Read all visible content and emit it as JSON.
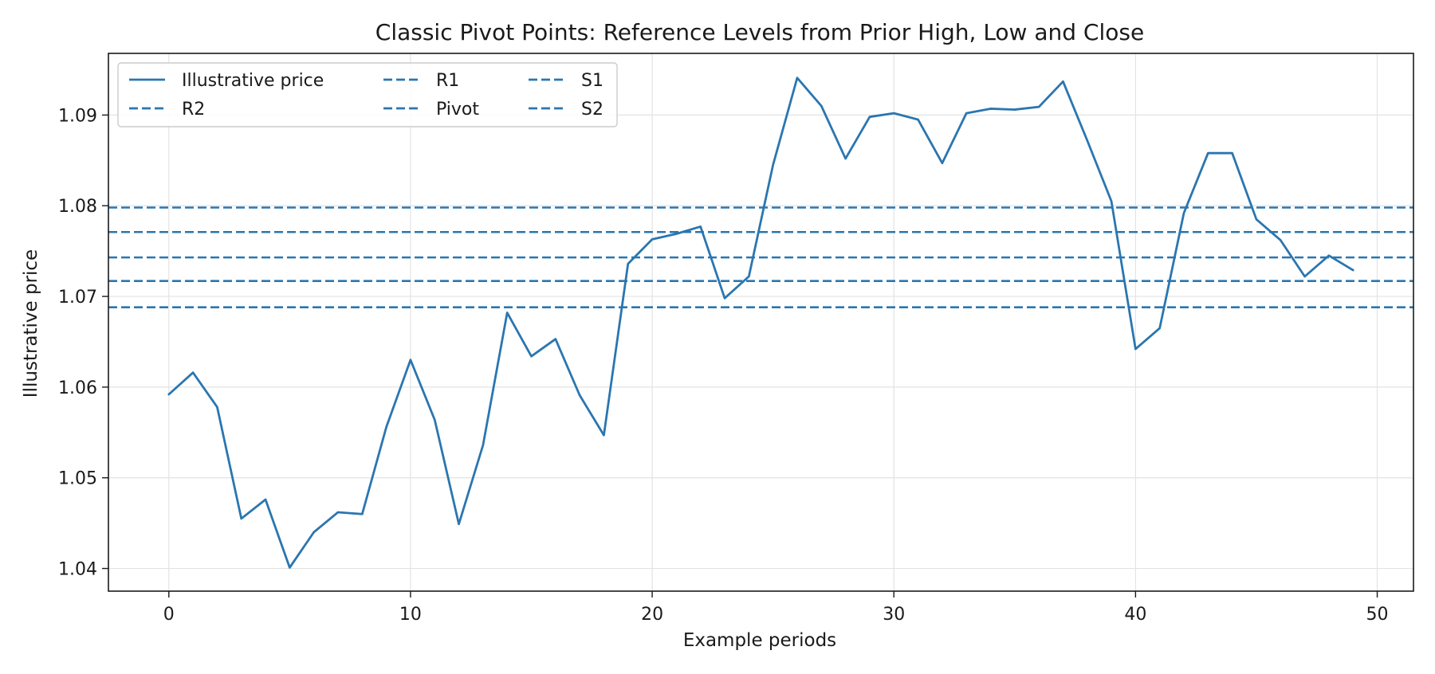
{
  "chart_data": {
    "type": "line",
    "title": "Classic Pivot Points: Reference Levels from Prior High, Low and Close",
    "xlabel": "Example periods",
    "ylabel": "Illustrative price",
    "xlim": [
      -2.5,
      51.5
    ],
    "ylim": [
      1.0375,
      1.0968
    ],
    "xticks": [
      0,
      10,
      20,
      30,
      40,
      50
    ],
    "yticks": [
      1.04,
      1.05,
      1.06,
      1.07,
      1.08,
      1.09
    ],
    "ytick_labels": [
      "1.04",
      "1.05",
      "1.06",
      "1.07",
      "1.08",
      "1.09"
    ],
    "grid": true,
    "legend_position": "top-left",
    "legend_columns": 3,
    "color": "#2a76b0",
    "series": [
      {
        "name": "Illustrative price",
        "style": "solid",
        "x": [
          0,
          1,
          2,
          3,
          4,
          5,
          6,
          7,
          8,
          9,
          10,
          11,
          12,
          13,
          14,
          15,
          16,
          17,
          18,
          19,
          20,
          21,
          22,
          23,
          24,
          25,
          26,
          27,
          28,
          29,
          30,
          31,
          32,
          33,
          34,
          35,
          36,
          37,
          38,
          39,
          40,
          41,
          42,
          43,
          44,
          45,
          46,
          47,
          48,
          49
        ],
        "values": [
          1.0592,
          1.0616,
          1.0578,
          1.0455,
          1.0476,
          1.0401,
          1.044,
          1.0462,
          1.046,
          1.0556,
          1.063,
          1.0564,
          1.0449,
          1.0536,
          1.0682,
          1.0634,
          1.0653,
          1.0591,
          1.0547,
          1.0736,
          1.0763,
          1.0769,
          1.0777,
          1.0698,
          1.0722,
          1.0845,
          1.0941,
          1.091,
          1.0852,
          1.0898,
          1.0902,
          1.0895,
          1.0847,
          1.0902,
          1.0907,
          1.0906,
          1.0909,
          1.0937,
          1.0872,
          1.0805,
          1.0642,
          1.0665,
          1.0792,
          1.0858,
          1.0858,
          1.0785,
          1.0762,
          1.0722,
          1.0745,
          1.0729
        ]
      }
    ],
    "levels": [
      {
        "name": "R2",
        "value": 1.0798
      },
      {
        "name": "R1",
        "value": 1.0771
      },
      {
        "name": "Pivot",
        "value": 1.0743
      },
      {
        "name": "S1",
        "value": 1.0717
      },
      {
        "name": "S2",
        "value": 1.0688
      }
    ],
    "legend": [
      {
        "label": "Illustrative price",
        "style": "solid"
      },
      {
        "label": "R2",
        "style": "dashed"
      },
      {
        "label": "R1",
        "style": "dashed"
      },
      {
        "label": "Pivot",
        "style": "dashed"
      },
      {
        "label": "S1",
        "style": "dashed"
      },
      {
        "label": "S2",
        "style": "dashed"
      }
    ]
  }
}
